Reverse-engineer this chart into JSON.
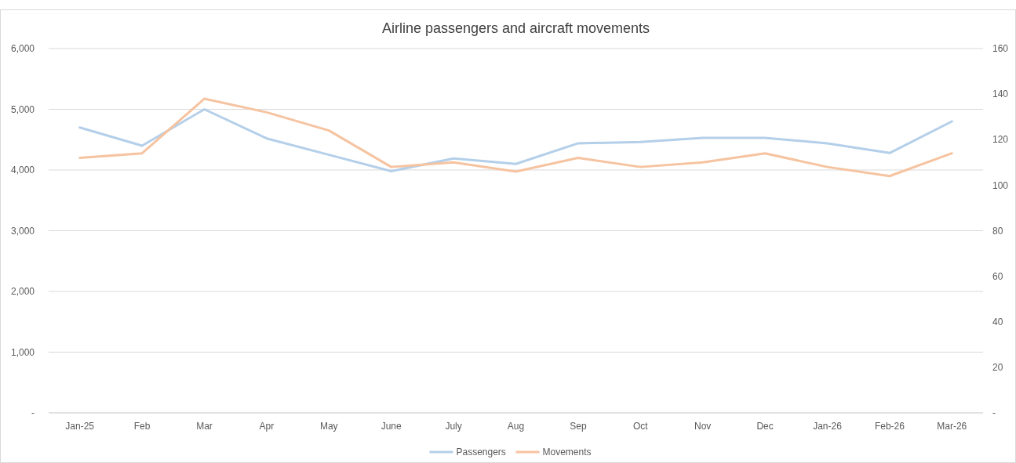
{
  "chart_data": {
    "type": "line",
    "title": "Airline passengers and aircraft movements",
    "categories": [
      "Jan-25",
      "Feb",
      "Mar",
      "Apr",
      "May",
      "June",
      "July",
      "Aug",
      "Sep",
      "Oct",
      "Nov",
      "Dec",
      "Jan-26",
      "Feb-26",
      "Mar-26"
    ],
    "series": [
      {
        "name": "Passengers",
        "color": "#b4cfe9",
        "values": [
          4700,
          4400,
          5000,
          4520,
          4250,
          3980,
          4190,
          4100,
          4440,
          4460,
          4530,
          4530,
          4440,
          4280,
          4800
        ]
      },
      {
        "name": "Movements",
        "color": "#f6c3a0",
        "axis": "y2",
        "values": [
          112,
          114,
          138,
          132,
          124,
          108,
          110,
          106,
          112,
          108,
          110,
          114,
          108,
          104,
          114
        ]
      }
    ],
    "ylim": [
      0,
      6000
    ],
    "yticks": [
      {
        "value": 0,
        "label": "-"
      },
      {
        "value": 1000,
        "label": "1,000"
      },
      {
        "value": 2000,
        "label": "2,000"
      },
      {
        "value": 3000,
        "label": "3,000"
      },
      {
        "value": 4000,
        "label": "4,000"
      },
      {
        "value": 5000,
        "label": "5,000"
      },
      {
        "value": 6000,
        "label": "6,000"
      }
    ],
    "y2lim": [
      0,
      160
    ],
    "y2ticks": [
      {
        "value": 0,
        "label": "-"
      },
      20,
      40,
      60,
      80,
      100,
      120,
      140,
      160
    ],
    "grid": "y",
    "legend": "bottom",
    "marker": "none",
    "line_style": "solid"
  }
}
